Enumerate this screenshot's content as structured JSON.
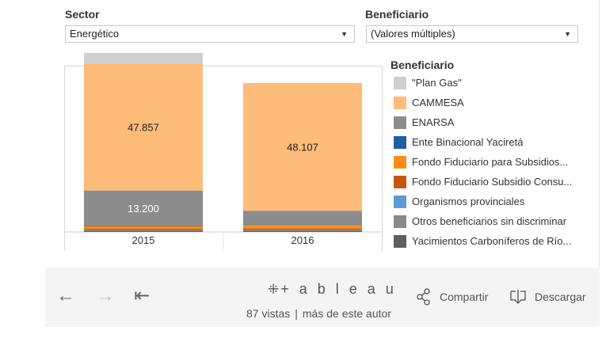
{
  "filters": {
    "sector": {
      "label": "Sector",
      "value": "Energético"
    },
    "beneficiario": {
      "label": "Beneficiario",
      "value": "(Valores múltiples)"
    }
  },
  "chart_data": {
    "type": "bar",
    "stacked": true,
    "categories": [
      "2015",
      "2016"
    ],
    "series": [
      {
        "name": "Yacimientos Carboníferos de Río...",
        "color": "#5f5f5f",
        "values": [
          500,
          500
        ]
      },
      {
        "name": "Otros beneficiarios sin discriminar",
        "color": "#8a8a8a",
        "values": [
          300,
          300
        ]
      },
      {
        "name": "Organismos provinciales",
        "color": "#5b9bd5",
        "values": [
          0,
          0
        ]
      },
      {
        "name": "Fondo Fiduciario Subsidio Consu...",
        "color": "#c8560a",
        "values": [
          400,
          500
        ]
      },
      {
        "name": "Fondo Fiduciario para Subsidios...",
        "color": "#ff8c1a",
        "values": [
          1000,
          1300
        ]
      },
      {
        "name": "Ente Binacional Yaciretá",
        "color": "#1f5f9f",
        "values": [
          200,
          200
        ]
      },
      {
        "name": "ENARSA",
        "color": "#8c8c8c",
        "values": [
          13200,
          5200
        ]
      },
      {
        "name": "CAMMESA",
        "color": "#ffbb7a",
        "values": [
          47857,
          48107
        ]
      },
      {
        "name": "\"Plan Gas\"",
        "color": "#cfcfcf",
        "values": [
          4000,
          0
        ]
      }
    ],
    "data_labels": [
      {
        "category": "2015",
        "series": "CAMMESA",
        "text": "47.857"
      },
      {
        "category": "2015",
        "series": "ENARSA",
        "text": "13.200"
      },
      {
        "category": "2016",
        "series": "CAMMESA",
        "text": "48.107"
      }
    ],
    "ylim": [
      0,
      68000
    ]
  },
  "legend": {
    "title": "Beneficiario",
    "items": [
      {
        "label": "\"Plan Gas\"",
        "color": "#cfcfcf"
      },
      {
        "label": "CAMMESA",
        "color": "#ffbb7a"
      },
      {
        "label": "ENARSA",
        "color": "#8c8c8c"
      },
      {
        "label": "Ente Binacional Yaciretá",
        "color": "#1f5f9f"
      },
      {
        "label": "Fondo Fiduciario para Subsidios...",
        "color": "#ff8c1a"
      },
      {
        "label": "Fondo Fiduciario Subsidio Consu...",
        "color": "#c8560a"
      },
      {
        "label": "Organismos provinciales",
        "color": "#5b9bd5"
      },
      {
        "label": "Otros beneficiarios sin discriminar",
        "color": "#8a8a8a"
      },
      {
        "label": "Yacimientos Carboníferos de Río...",
        "color": "#5f5f5f"
      }
    ]
  },
  "toolbar": {
    "back_icon": "←",
    "forward_icon": "→",
    "first_icon": "⇤",
    "logo_mark": "⁜",
    "logo_text": "+ a b l e a u",
    "views": "87 vistas",
    "separator": "|",
    "more_author": "más de este autor",
    "share_label": "Compartir",
    "download_label": "Descargar"
  }
}
